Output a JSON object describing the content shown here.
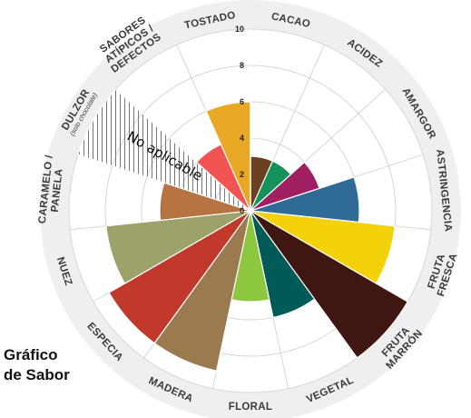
{
  "chart_data": {
    "type": "polar-area",
    "title_lines": [
      "Gráfico",
      "de Sabor"
    ],
    "rlim": [
      0,
      10
    ],
    "r_ticks": [
      0,
      2,
      4,
      6,
      8,
      10
    ],
    "not_applicable_text": "No aplicable",
    "categories": [
      {
        "label_lines": [
          "CACAO"
        ],
        "value": 3,
        "color": "#6b3f21"
      },
      {
        "label_lines": [
          "ACIDEZ"
        ],
        "value": 3,
        "color": "#15925a"
      },
      {
        "label_lines": [
          "AMARGOR"
        ],
        "value": 4,
        "color": "#a01f63"
      },
      {
        "label_lines": [
          "ASTRINGENCIA"
        ],
        "value": 6,
        "color": "#306a97"
      },
      {
        "label_lines": [
          "FRUTA",
          "FRESCA"
        ],
        "value": 8,
        "color": "#f4d20b"
      },
      {
        "label_lines": [
          "FRUTA",
          "MARRÓN"
        ],
        "value": 10,
        "color": "#401613"
      },
      {
        "label_lines": [
          "VEGETAL"
        ],
        "value": 6,
        "color": "#005a57"
      },
      {
        "label_lines": [
          "FLORAL"
        ],
        "value": 5,
        "color": "#8dc63f"
      },
      {
        "label_lines": [
          "MADERA"
        ],
        "value": 9,
        "color": "#9b7a4f"
      },
      {
        "label_lines": [
          "ESPECIA"
        ],
        "value": 9,
        "color": "#c0392b"
      },
      {
        "label_lines": [
          "NUEZ"
        ],
        "value": 8,
        "color": "#9ca26a"
      },
      {
        "label_lines": [
          "CARAMELO /",
          "PANELA"
        ],
        "value": 5,
        "color": "#b87343"
      },
      {
        "label_lines": [
          "DULZOR"
        ],
        "sub_label": "(solo chocolate)",
        "value": null,
        "not_applicable": true,
        "color": "#9a9a9a"
      },
      {
        "label_lines": [
          "SABORES",
          "ATÍPICOS /",
          "DEFECTOS"
        ],
        "value": 4,
        "color": "#f25454"
      },
      {
        "label_lines": [
          "TOSTADO"
        ],
        "value": 6,
        "color": "#e9a823"
      }
    ]
  }
}
